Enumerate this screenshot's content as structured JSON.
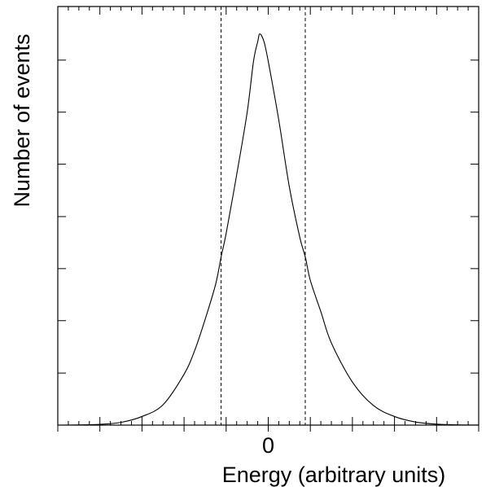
{
  "chart_data": {
    "type": "line",
    "title": "",
    "xlabel": "Energy (arbitrary units)",
    "ylabel": "Number of events",
    "xlim": [
      -5,
      5
    ],
    "ylim": [
      0,
      1.07
    ],
    "x_tick_labels": [
      {
        "value": 0,
        "label": "0"
      }
    ],
    "x_major_ticks": [
      -5,
      -4,
      -3,
      -2,
      -1,
      0,
      1,
      2,
      3,
      4,
      5
    ],
    "x_minor_ticks": [
      -4.5,
      -4.25,
      -3.75,
      -3.5,
      -3.25,
      -2.75,
      -2.5,
      -2.25,
      -1.75,
      -1.5,
      -1.25,
      -0.75,
      -0.5,
      -0.25,
      0.25,
      0.5,
      0.75,
      1.25,
      1.5,
      1.75,
      2.25,
      2.5,
      2.75,
      3.25,
      3.5,
      3.75,
      4.25,
      4.5,
      4.75,
      -4.75
    ],
    "y_major_ticks": [
      0.133,
      0.267,
      0.4,
      0.533,
      0.667,
      0.8,
      0.933
    ],
    "grid": false,
    "vlines": [
      {
        "x": -1.12,
        "style": "dashed"
      },
      {
        "x": 0.88,
        "style": "dashed"
      }
    ],
    "series": [
      {
        "x": [
          -5,
          -4.5,
          -4,
          -3.5,
          -3,
          -2.5,
          -2,
          -1.75,
          -1.5,
          -1.25,
          -1.12,
          -1,
          -0.75,
          -0.5,
          -0.35,
          -0.25,
          -0.2,
          -0.1,
          0,
          0.25,
          0.5,
          0.75,
          0.88,
          1,
          1.25,
          1.5,
          2,
          2.5,
          3,
          3.5,
          4,
          4.5,
          5
        ],
        "y": [
          0,
          0.0005,
          0.002,
          0.007,
          0.022,
          0.052,
          0.13,
          0.19,
          0.27,
          0.36,
          0.43,
          0.49,
          0.64,
          0.8,
          0.93,
          0.98,
          1.0,
          0.98,
          0.93,
          0.78,
          0.61,
          0.48,
          0.43,
          0.37,
          0.29,
          0.21,
          0.11,
          0.05,
          0.022,
          0.008,
          0.0025,
          0.0006,
          0.0001
        ]
      }
    ]
  }
}
